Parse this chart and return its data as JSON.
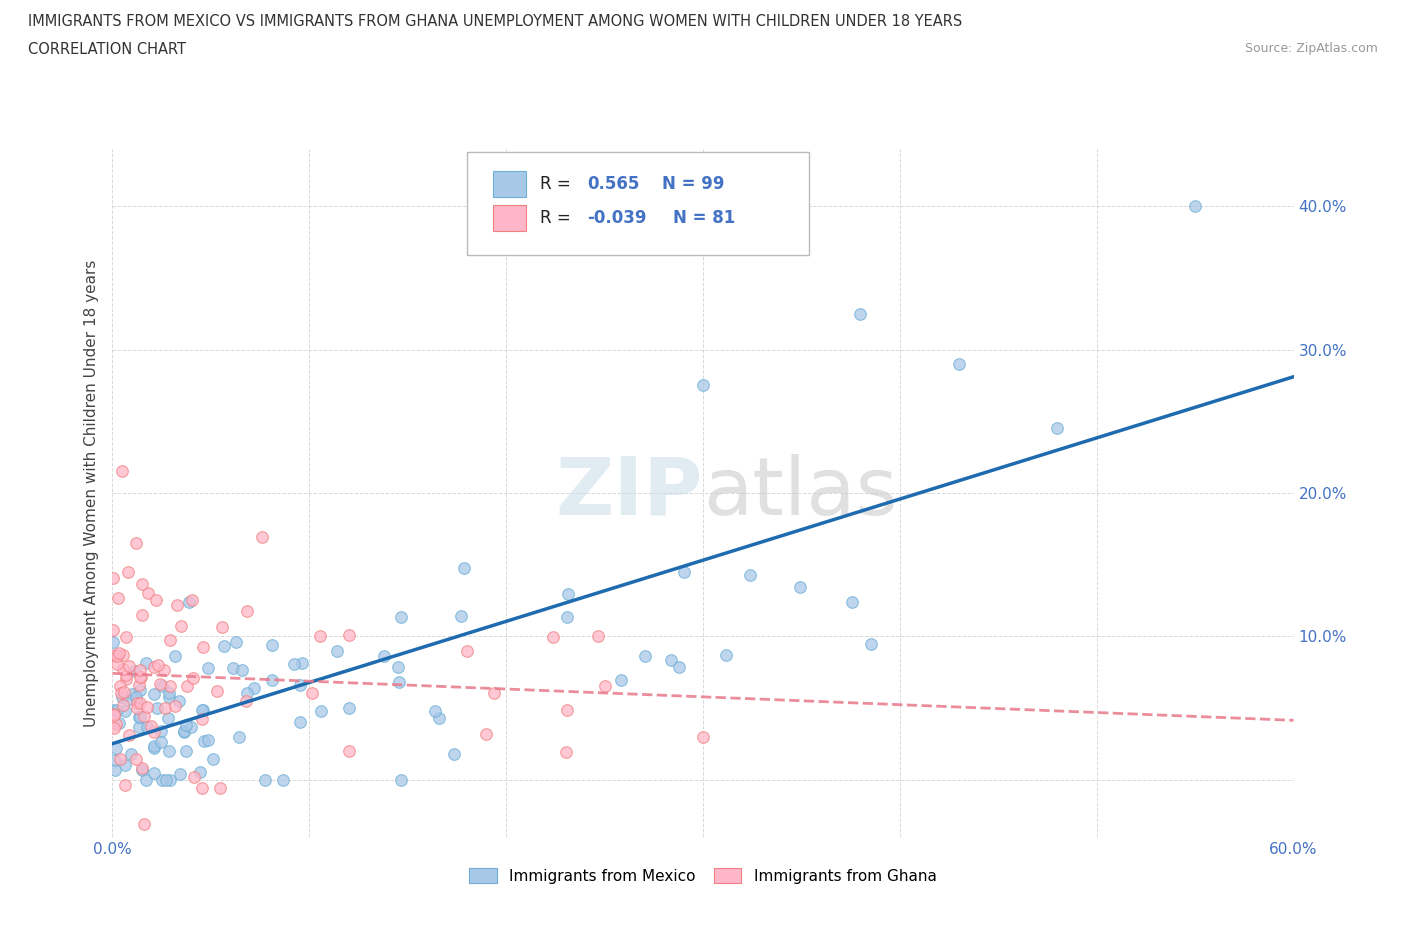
{
  "title_line1": "IMMIGRANTS FROM MEXICO VS IMMIGRANTS FROM GHANA UNEMPLOYMENT AMONG WOMEN WITH CHILDREN UNDER 18 YEARS",
  "title_line2": "CORRELATION CHART",
  "source": "Source: ZipAtlas.com",
  "ylabel": "Unemployment Among Women with Children Under 18 years",
  "xlim": [
    0.0,
    0.6
  ],
  "ylim": [
    -0.04,
    0.44
  ],
  "mexico_color": "#a8c8e8",
  "mexico_edge": "#6baed6",
  "ghana_color": "#ffb6c8",
  "ghana_edge": "#f08080",
  "mexico_line_color": "#1f6bb0",
  "ghana_line_color": "#e8788a",
  "mexico_R": 0.565,
  "mexico_N": 99,
  "ghana_R": -0.039,
  "ghana_N": 81,
  "watermark": "ZIPatlas",
  "background_color": "#ffffff",
  "grid_color": "#d0d0d0",
  "legend_label_mexico": "Immigrants from Mexico",
  "legend_label_ghana": "Immigrants from Ghana",
  "tick_color": "#4472c4",
  "title_color": "#333333",
  "source_color": "#999999"
}
